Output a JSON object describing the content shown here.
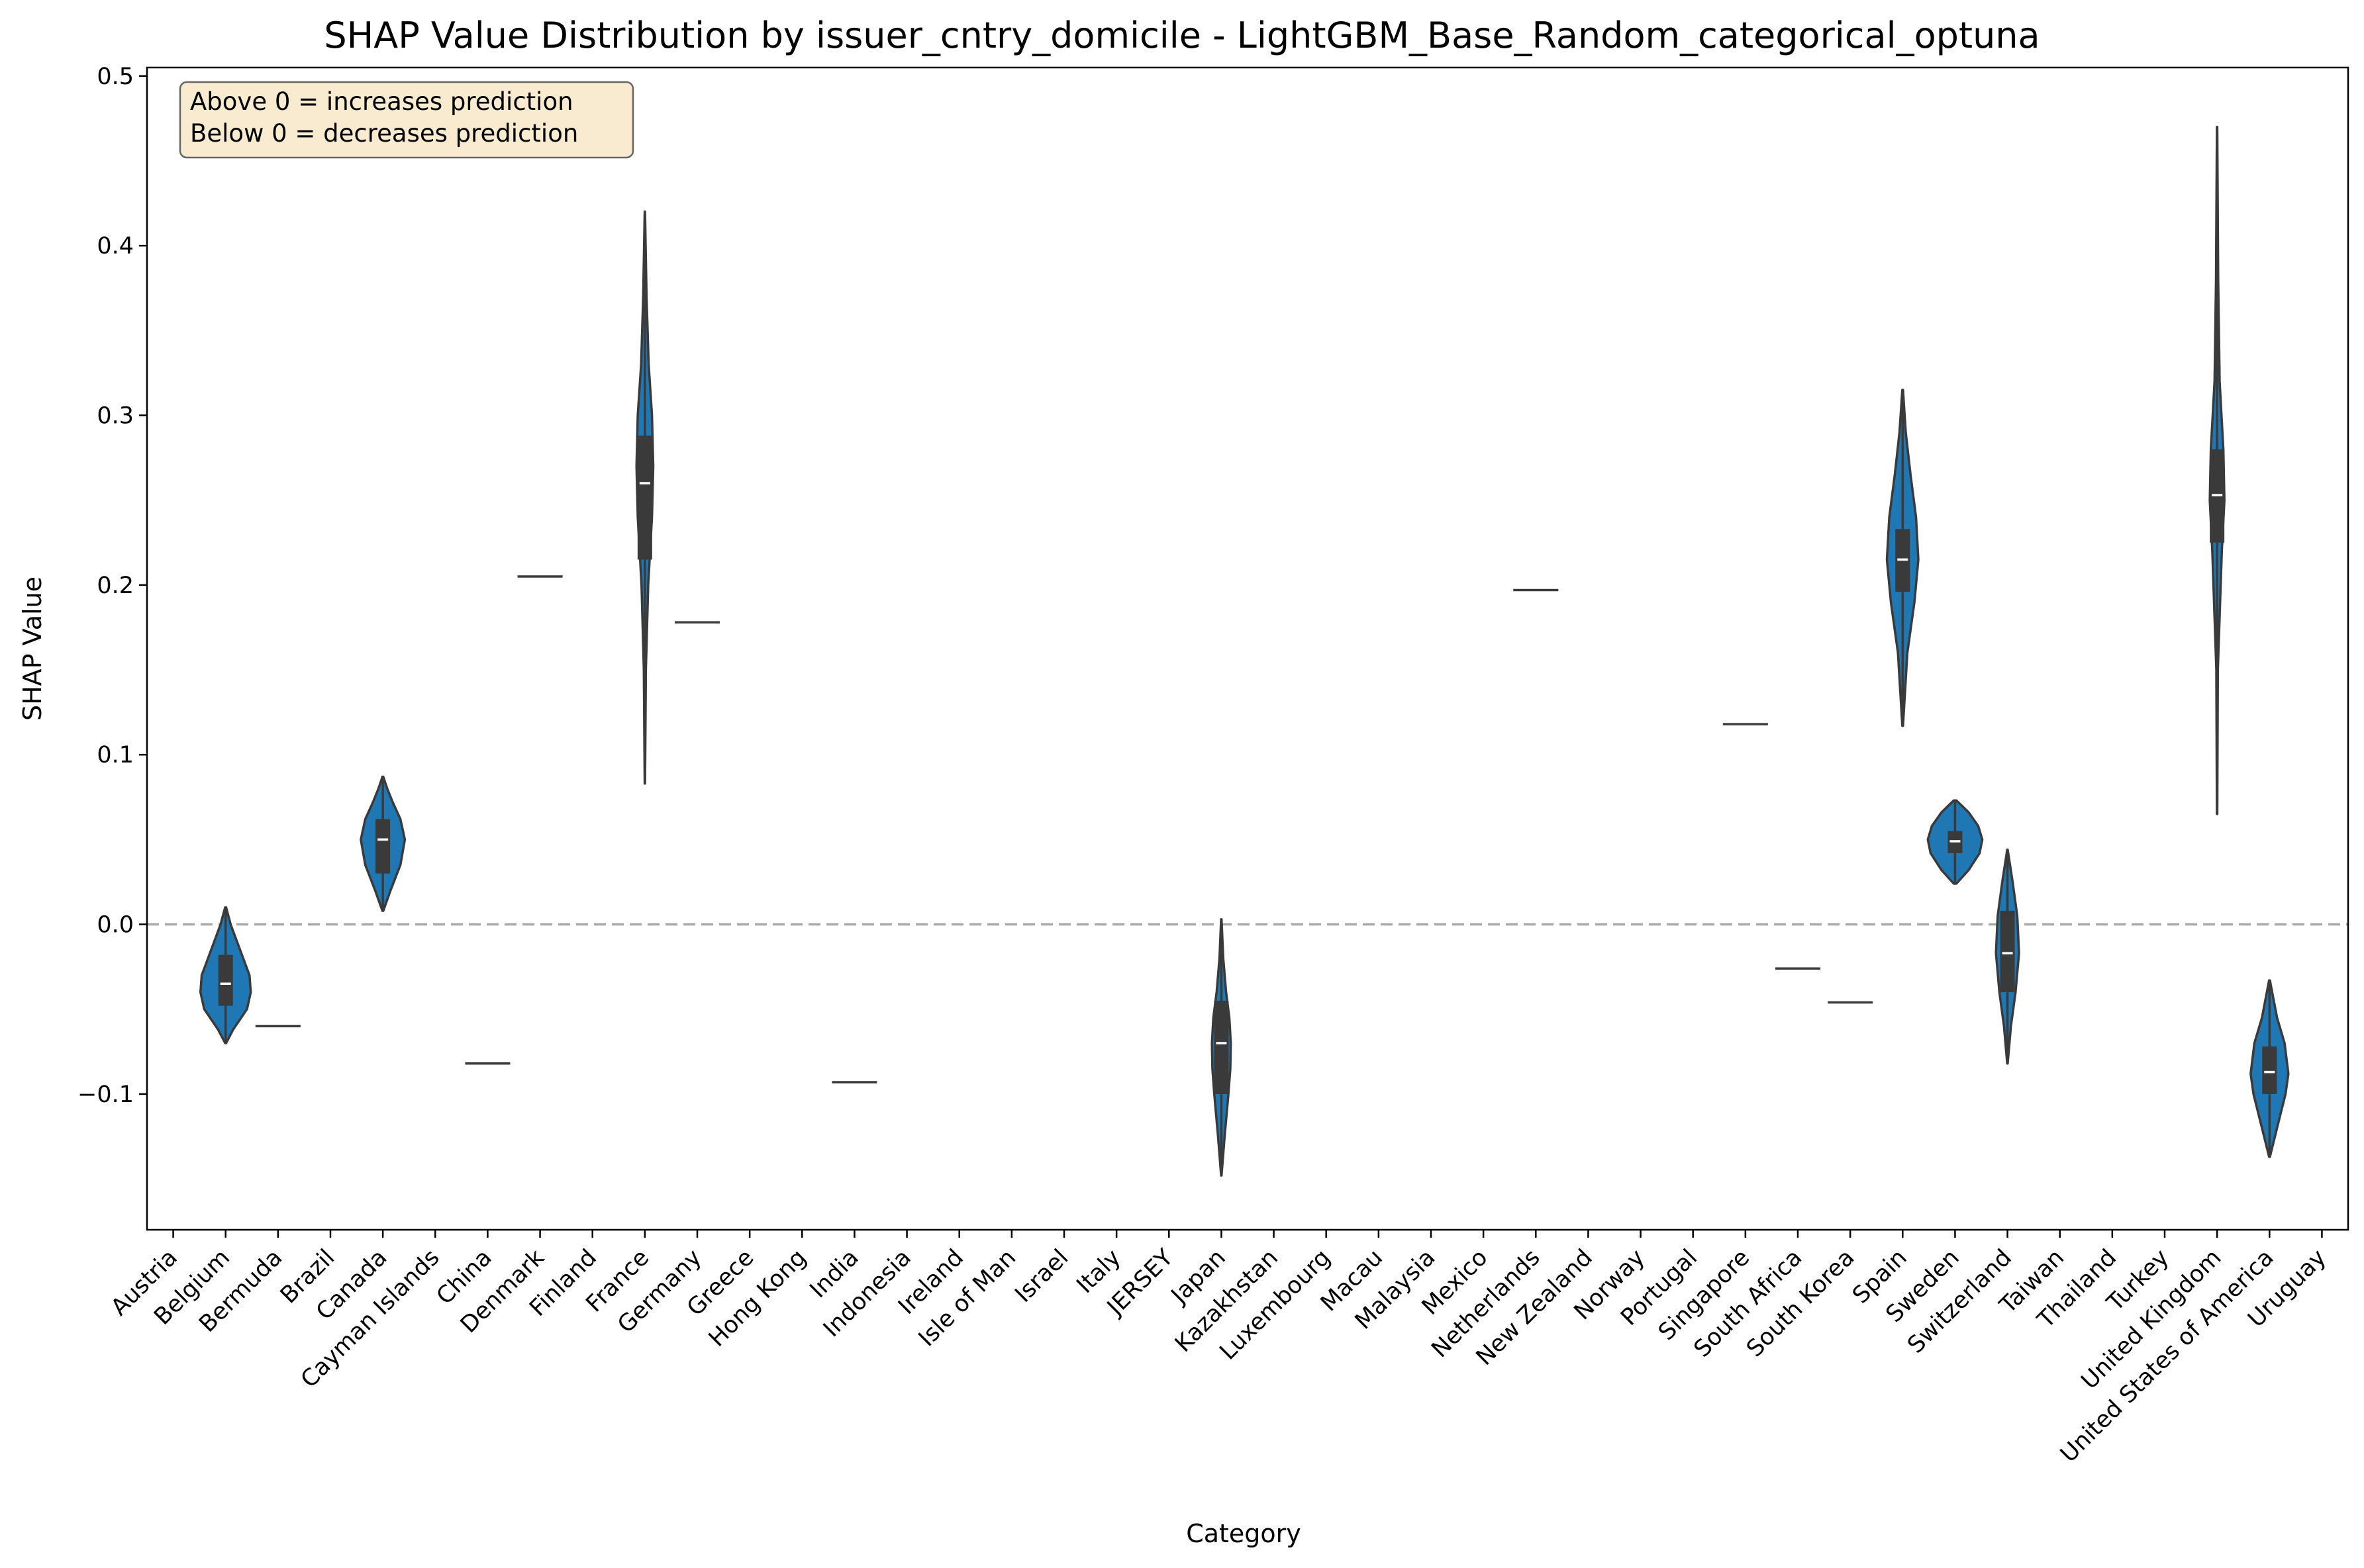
{
  "chart_data": {
    "type": "violin",
    "title": "SHAP Value Distribution by issuer_cntry_domicile - LightGBM_Base_Random_categorical_optuna",
    "xlabel": "Category",
    "ylabel": "SHAP Value",
    "ylim": [
      -0.18,
      0.505
    ],
    "yticks": [
      -0.1,
      0.0,
      0.1,
      0.2,
      0.3,
      0.4,
      0.5
    ],
    "ytick_labels": [
      "−0.1",
      "0.0",
      "0.1",
      "0.2",
      "0.3",
      "0.4",
      "0.5"
    ],
    "reference_line": {
      "y": 0,
      "style": "dashed",
      "color": "#aaaaaa"
    },
    "annotation": [
      "Above 0 = increases prediction",
      "Below 0 = decreases prediction"
    ],
    "colors": {
      "violin_fill": "#1f77b4",
      "violin_edge": "#3a3a3a",
      "box": "#3a3a3a",
      "median": "#ffffff"
    },
    "categories": [
      "Austria",
      "Belgium",
      "Bermuda",
      "Brazil",
      "Canada",
      "Cayman Islands",
      "China",
      "Denmark",
      "Finland",
      "France",
      "Germany",
      "Greece",
      "Hong Kong",
      "India",
      "Indonesia",
      "Ireland",
      "Isle of Man",
      "Israel",
      "Italy",
      "JERSEY",
      "Japan",
      "Kazakhstan",
      "Luxembourg",
      "Macau",
      "Malaysia",
      "Mexico",
      "Netherlands",
      "New Zealand",
      "Norway",
      "Portugal",
      "Singapore",
      "South Africa",
      "South Korea",
      "Spain",
      "Sweden",
      "Switzerland",
      "Taiwan",
      "Thailand",
      "Turkey",
      "United Kingdom",
      "United States of America",
      "Uruguay"
    ],
    "violins": [
      {
        "category_index": 1,
        "min": -0.07,
        "max": 0.01,
        "q1": -0.048,
        "median": -0.035,
        "q3": -0.018,
        "width": 0.48,
        "profile": [
          [
            -0.07,
            0.02
          ],
          [
            -0.062,
            0.3
          ],
          [
            -0.05,
            0.85
          ],
          [
            -0.04,
            1.0
          ],
          [
            -0.03,
            0.95
          ],
          [
            -0.02,
            0.7
          ],
          [
            -0.01,
            0.45
          ],
          [
            0.0,
            0.2
          ],
          [
            0.01,
            0.02
          ]
        ]
      },
      {
        "category_index": 2,
        "single": -0.06
      },
      {
        "category_index": 4,
        "min": 0.008,
        "max": 0.087,
        "q1": 0.03,
        "median": 0.05,
        "q3": 0.062,
        "width": 0.42,
        "profile": [
          [
            0.008,
            0.02
          ],
          [
            0.02,
            0.35
          ],
          [
            0.035,
            0.8
          ],
          [
            0.05,
            1.0
          ],
          [
            0.062,
            0.8
          ],
          [
            0.072,
            0.45
          ],
          [
            0.08,
            0.2
          ],
          [
            0.087,
            0.02
          ]
        ]
      },
      {
        "category_index": 6,
        "single": -0.082
      },
      {
        "category_index": 7,
        "single": 0.205
      },
      {
        "category_index": 9,
        "min": 0.083,
        "max": 0.42,
        "q1": 0.215,
        "median": 0.26,
        "q3": 0.288,
        "width": 0.16,
        "profile": [
          [
            0.083,
            0.02
          ],
          [
            0.15,
            0.12
          ],
          [
            0.2,
            0.4
          ],
          [
            0.24,
            0.85
          ],
          [
            0.27,
            1.0
          ],
          [
            0.3,
            0.85
          ],
          [
            0.33,
            0.45
          ],
          [
            0.37,
            0.2
          ],
          [
            0.42,
            0.02
          ]
        ]
      },
      {
        "category_index": 10,
        "single": 0.178
      },
      {
        "category_index": 13,
        "single": -0.093
      },
      {
        "category_index": 20,
        "min": -0.148,
        "max": 0.003,
        "q1": -0.1,
        "median": -0.07,
        "q3": -0.045,
        "width": 0.18,
        "profile": [
          [
            -0.148,
            0.02
          ],
          [
            -0.125,
            0.35
          ],
          [
            -0.1,
            0.75
          ],
          [
            -0.085,
            0.95
          ],
          [
            -0.07,
            1.0
          ],
          [
            -0.055,
            0.85
          ],
          [
            -0.04,
            0.5
          ],
          [
            -0.02,
            0.2
          ],
          [
            0.003,
            0.02
          ]
        ]
      },
      {
        "category_index": 26,
        "single": 0.197
      },
      {
        "category_index": 30,
        "single": 0.118
      },
      {
        "category_index": 31,
        "single": -0.026
      },
      {
        "category_index": 32,
        "single": -0.046
      },
      {
        "category_index": 33,
        "min": 0.117,
        "max": 0.315,
        "q1": 0.196,
        "median": 0.215,
        "q3": 0.233,
        "width": 0.3,
        "profile": [
          [
            0.117,
            0.02
          ],
          [
            0.16,
            0.3
          ],
          [
            0.19,
            0.75
          ],
          [
            0.215,
            1.0
          ],
          [
            0.24,
            0.85
          ],
          [
            0.265,
            0.5
          ],
          [
            0.29,
            0.2
          ],
          [
            0.315,
            0.02
          ]
        ]
      },
      {
        "category_index": 34,
        "min": 0.024,
        "max": 0.073,
        "q1": 0.042,
        "median": 0.049,
        "q3": 0.055,
        "width": 0.52,
        "profile": [
          [
            0.024,
            0.05
          ],
          [
            0.032,
            0.5
          ],
          [
            0.042,
            0.9
          ],
          [
            0.05,
            1.0
          ],
          [
            0.058,
            0.85
          ],
          [
            0.066,
            0.5
          ],
          [
            0.073,
            0.05
          ]
        ]
      },
      {
        "category_index": 35,
        "min": -0.082,
        "max": 0.044,
        "q1": -0.04,
        "median": -0.017,
        "q3": 0.008,
        "width": 0.22,
        "profile": [
          [
            -0.082,
            0.02
          ],
          [
            -0.06,
            0.3
          ],
          [
            -0.04,
            0.7
          ],
          [
            -0.017,
            1.0
          ],
          [
            0.005,
            0.85
          ],
          [
            0.025,
            0.45
          ],
          [
            0.044,
            0.02
          ]
        ]
      },
      {
        "category_index": 39,
        "min": 0.065,
        "max": 0.47,
        "q1": 0.225,
        "median": 0.253,
        "q3": 0.28,
        "width": 0.14,
        "profile": [
          [
            0.065,
            0.02
          ],
          [
            0.15,
            0.1
          ],
          [
            0.22,
            0.65
          ],
          [
            0.25,
            1.0
          ],
          [
            0.28,
            0.85
          ],
          [
            0.32,
            0.35
          ],
          [
            0.38,
            0.15
          ],
          [
            0.47,
            0.02
          ]
        ]
      },
      {
        "category_index": 40,
        "min": -0.137,
        "max": -0.033,
        "q1": -0.1,
        "median": -0.087,
        "q3": -0.072,
        "width": 0.36,
        "profile": [
          [
            -0.137,
            0.02
          ],
          [
            -0.12,
            0.4
          ],
          [
            -0.1,
            0.85
          ],
          [
            -0.088,
            1.0
          ],
          [
            -0.07,
            0.8
          ],
          [
            -0.055,
            0.4
          ],
          [
            -0.033,
            0.02
          ]
        ]
      }
    ]
  }
}
